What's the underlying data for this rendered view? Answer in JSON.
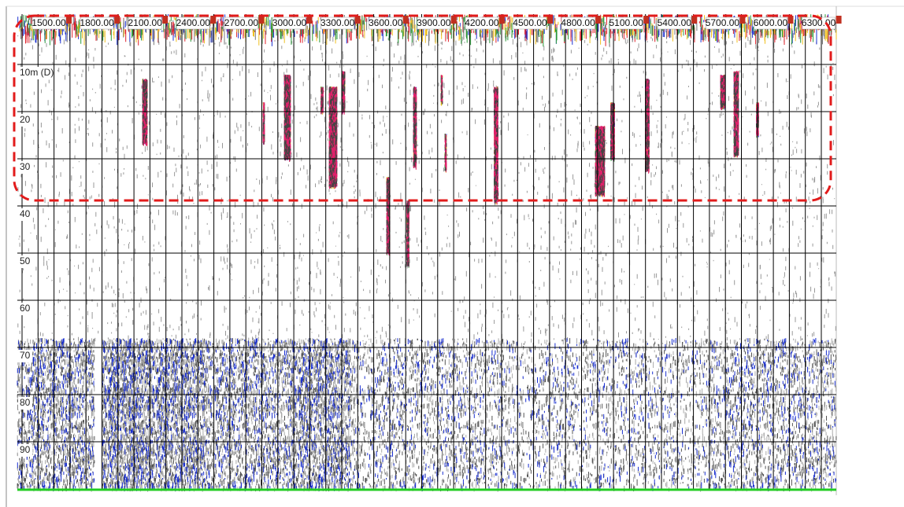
{
  "top_axis": {
    "labels": [
      "1500.00",
      "1800.00",
      "2100.00",
      "2400.00",
      "2700.00",
      "3000.00",
      "3300.00",
      "3600.00",
      "3900.00",
      "4200.00",
      "4500.00",
      "4800.00",
      "5100.00",
      "5400.00",
      "5700.00",
      "6000.00",
      "6300.00"
    ]
  },
  "depth_axis": {
    "labels": [
      "10m (D)",
      "20",
      "30",
      "40",
      "50",
      "60",
      "70",
      "80",
      "90"
    ]
  }
}
